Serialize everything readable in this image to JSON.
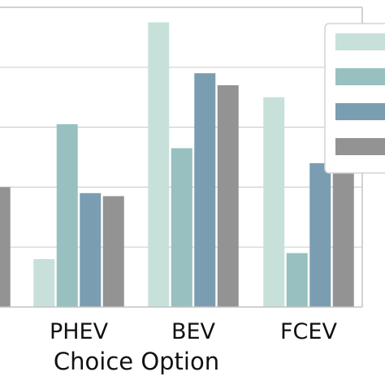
{
  "chart_data": {
    "type": "bar",
    "categories": [
      "",
      "PHEV",
      "BEV",
      "FCEV"
    ],
    "xlabel": "Choice Option",
    "ylabel": "",
    "ylim": [
      0,
      1
    ],
    "grid": true,
    "legend_position": "top-right",
    "series": [
      {
        "color": "#c7e1da",
        "values": [
          null,
          0.16,
          0.95,
          0.7
        ]
      },
      {
        "color": "#98c0c0",
        "values": [
          null,
          0.61,
          0.53,
          0.18
        ]
      },
      {
        "color": "#7a9db1",
        "values": [
          null,
          0.38,
          0.78,
          0.48
        ]
      },
      {
        "color": "#939393",
        "values": [
          0.4,
          0.37,
          0.74,
          0.48
        ]
      }
    ]
  }
}
